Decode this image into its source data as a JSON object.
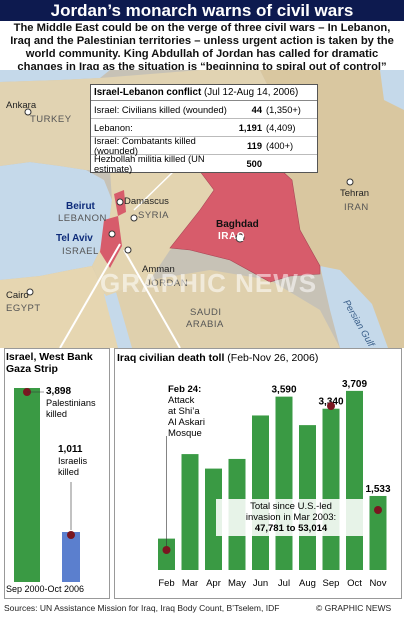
{
  "header": {
    "title": "Jordan’s monarch warns of civil wars",
    "intro": "The Middle East could be on the verge of three civil wars – In Lebanon, Iraq and the Palestinian territories – unless urgent action is taken by the world community. King Abdullah of Jordan has called for dramatic changes in Iraq as the situation is “beginning to spiral out of control”"
  },
  "map": {
    "places": {
      "ankara": "Ankara",
      "turkey": "TURKEY",
      "beirut": "Beirut",
      "lebanon": "LEBANON",
      "damascus": "Damascus",
      "syria": "SYRIA",
      "tel_aviv": "Tel Aviv",
      "israel": "ISRAEL",
      "amman": "Amman",
      "jordan": "JORDAN",
      "cairo": "Cairo",
      "egypt": "EGYPT",
      "baghdad": "Baghdad",
      "iraq": "IRAQ",
      "tehran": "Tehran",
      "iran": "IRAN",
      "saudi_arabia_1": "SAUDI",
      "saudi_arabia_2": "ARABIA",
      "persian_gulf": "Persian Gulf"
    },
    "watermark": "GRAPHIC NEWS"
  },
  "conflict": {
    "title": "Israel-Lebanon conflict",
    "subtitle": "(Jul 12-Aug 14, 2006)",
    "rows": [
      {
        "label": "Israel: Civilians killed (wounded)",
        "value": "44",
        "wounded": "(1,350+)"
      },
      {
        "label": "Lebanon:",
        "value": "1,191",
        "wounded": "(4,409)"
      },
      {
        "label": "Israel: Combatants killed (wounded)",
        "value": "119",
        "wounded": "(400+)"
      },
      {
        "label": "Hezbollah militia killed (UN estimate)",
        "value": "500",
        "wounded": ""
      }
    ]
  },
  "westbank": {
    "title_line1": "Israel, West Bank",
    "title_line2": "Gaza Strip",
    "palestinians_value": "3,898",
    "palestinians_label1": "Palestinians",
    "palestinians_label2": "killed",
    "israelis_value": "1,011",
    "israelis_label1": "Israelis",
    "israelis_label2": "killed",
    "period": "Sep 2000-Oct 2006",
    "colors": {
      "palestinians": "#3a9a44",
      "israelis": "#5b7fce"
    }
  },
  "iraq_chart": {
    "title": "Iraq civilian death toll",
    "subtitle": "(Feb-Nov 26, 2006)",
    "annotation_date": "Feb 24:",
    "annotation_line1": "Attack",
    "annotation_line2": "at Shi’a",
    "annotation_line3": "Al Askari",
    "annotation_line4": "Mosque",
    "total_line1": "Total since U.S.-led",
    "total_line2": "invasion in Mar 2003:",
    "total_value": "47,781 to 53,014",
    "bar_color": "#3a9a44"
  },
  "chart_data": {
    "type": "bar",
    "title": "Iraq civilian death toll",
    "subtitle": "(Feb-Nov 26, 2006)",
    "categories": [
      "Feb",
      "Mar",
      "Apr",
      "May",
      "Jun",
      "Jul",
      "Aug",
      "Sep",
      "Oct",
      "Nov"
    ],
    "values": [
      650,
      2400,
      2100,
      2300,
      3200,
      3590,
      3000,
      3340,
      3709,
      1533
    ],
    "data_labels": [
      "",
      "",
      "",
      "",
      "",
      "3,590",
      "",
      "3,340",
      "3,709",
      "1,533"
    ],
    "ylim": [
      0,
      4100
    ]
  },
  "footer": {
    "sources": "Sources: UN Assistance Mission for Iraq, Iraq Body Count, B’Tselem, IDF",
    "credit": "© GRAPHIC NEWS"
  }
}
